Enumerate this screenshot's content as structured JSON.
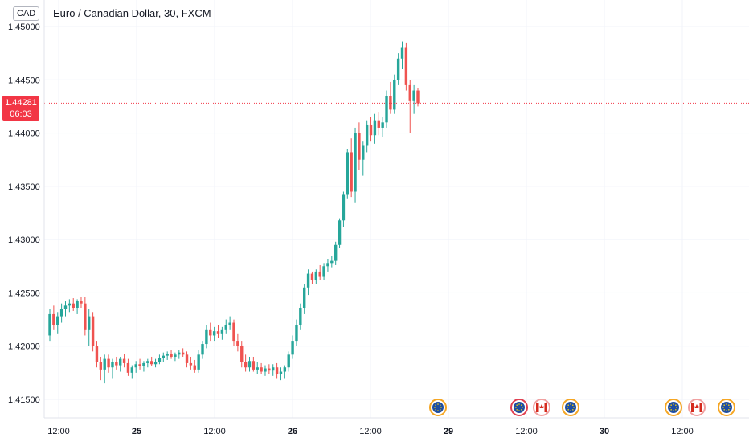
{
  "header": {
    "currency_badge": "CAD",
    "title": "Euro / Canadian Dollar, 30, FXCM"
  },
  "price_tag": {
    "price": "1.44281",
    "countdown": "06:03",
    "color": "#f23645"
  },
  "colors": {
    "up": "#26a69a",
    "down": "#ef5350",
    "grid": "#f0f3fa",
    "last_price_line": "#f23645"
  },
  "chart_data": {
    "type": "candlestick",
    "symbol": "EUR/CAD",
    "timeframe": "30",
    "source": "FXCM",
    "ylim": [
      1.4125,
      1.4515
    ],
    "y_ticks": [
      "1.45000",
      "1.44500",
      "1.44000",
      "1.43500",
      "1.43000",
      "1.42500",
      "1.42000",
      "1.41500"
    ],
    "x_ticks": [
      "12:00",
      "25",
      "12:00",
      "26",
      "12:00",
      "29",
      "12:00",
      "30",
      "12:00"
    ],
    "last_price": 1.44281,
    "grid": true,
    "candles": [
      [
        1.421,
        1.4235,
        1.4205,
        1.423
      ],
      [
        1.423,
        1.4238,
        1.4215,
        1.422
      ],
      [
        1.422,
        1.4232,
        1.4212,
        1.4228
      ],
      [
        1.4228,
        1.424,
        1.4222,
        1.4235
      ],
      [
        1.4235,
        1.4242,
        1.4228,
        1.4238
      ],
      [
        1.4238,
        1.4244,
        1.4232,
        1.424
      ],
      [
        1.424,
        1.4245,
        1.4233,
        1.4236
      ],
      [
        1.4236,
        1.4244,
        1.423,
        1.4242
      ],
      [
        1.4242,
        1.4246,
        1.4236,
        1.424
      ],
      [
        1.424,
        1.4246,
        1.421,
        1.4215
      ],
      [
        1.4215,
        1.4235,
        1.42,
        1.4228
      ],
      [
        1.4228,
        1.4232,
        1.4195,
        1.42
      ],
      [
        1.42,
        1.4205,
        1.418,
        1.4185
      ],
      [
        1.4185,
        1.419,
        1.4168,
        1.4178
      ],
      [
        1.4178,
        1.4192,
        1.4165,
        1.4188
      ],
      [
        1.4188,
        1.4192,
        1.4175,
        1.418
      ],
      [
        1.418,
        1.4188,
        1.417,
        1.4185
      ],
      [
        1.4185,
        1.419,
        1.4178,
        1.4182
      ],
      [
        1.4182,
        1.419,
        1.4176,
        1.4188
      ],
      [
        1.4188,
        1.4193,
        1.418,
        1.4184
      ],
      [
        1.4184,
        1.4188,
        1.4172,
        1.4175
      ],
      [
        1.4175,
        1.4182,
        1.417,
        1.418
      ],
      [
        1.418,
        1.4186,
        1.4175,
        1.4183
      ],
      [
        1.4183,
        1.4188,
        1.4178,
        1.4181
      ],
      [
        1.4181,
        1.4186,
        1.4176,
        1.4184
      ],
      [
        1.4184,
        1.4188,
        1.418,
        1.4186
      ],
      [
        1.4186,
        1.419,
        1.4181,
        1.4183
      ],
      [
        1.4183,
        1.4188,
        1.418,
        1.4185
      ],
      [
        1.4185,
        1.4192,
        1.4183,
        1.4189
      ],
      [
        1.4189,
        1.4194,
        1.4185,
        1.4191
      ],
      [
        1.4191,
        1.4195,
        1.4187,
        1.4193
      ],
      [
        1.4193,
        1.4196,
        1.4188,
        1.419
      ],
      [
        1.419,
        1.4194,
        1.4186,
        1.4192
      ],
      [
        1.4192,
        1.4196,
        1.4188,
        1.4194
      ],
      [
        1.4194,
        1.4198,
        1.419,
        1.4192
      ],
      [
        1.4192,
        1.4195,
        1.418,
        1.4184
      ],
      [
        1.4184,
        1.419,
        1.4178,
        1.4182
      ],
      [
        1.4182,
        1.4187,
        1.4175,
        1.4178
      ],
      [
        1.4178,
        1.4196,
        1.4175,
        1.4192
      ],
      [
        1.4192,
        1.4205,
        1.4188,
        1.4202
      ],
      [
        1.4202,
        1.422,
        1.4198,
        1.4215
      ],
      [
        1.4215,
        1.4222,
        1.4205,
        1.421
      ],
      [
        1.421,
        1.4218,
        1.4205,
        1.4214
      ],
      [
        1.4214,
        1.422,
        1.4208,
        1.4212
      ],
      [
        1.4212,
        1.4218,
        1.4206,
        1.4215
      ],
      [
        1.4215,
        1.4225,
        1.4212,
        1.422
      ],
      [
        1.422,
        1.4228,
        1.4215,
        1.4222
      ],
      [
        1.4222,
        1.4225,
        1.42,
        1.4205
      ],
      [
        1.4205,
        1.4212,
        1.4195,
        1.42
      ],
      [
        1.42,
        1.4205,
        1.418,
        1.4185
      ],
      [
        1.4185,
        1.4192,
        1.4176,
        1.418
      ],
      [
        1.418,
        1.419,
        1.4176,
        1.4186
      ],
      [
        1.4186,
        1.419,
        1.4176,
        1.4178
      ],
      [
        1.4178,
        1.4185,
        1.4174,
        1.418
      ],
      [
        1.418,
        1.4184,
        1.4174,
        1.4176
      ],
      [
        1.4176,
        1.4182,
        1.4172,
        1.4179
      ],
      [
        1.4179,
        1.4183,
        1.4174,
        1.4177
      ],
      [
        1.4177,
        1.4183,
        1.4172,
        1.418
      ],
      [
        1.418,
        1.4184,
        1.417,
        1.4174
      ],
      [
        1.4174,
        1.418,
        1.4168,
        1.4176
      ],
      [
        1.4176,
        1.4182,
        1.417,
        1.418
      ],
      [
        1.418,
        1.4195,
        1.4176,
        1.4192
      ],
      [
        1.4192,
        1.421,
        1.4188,
        1.4205
      ],
      [
        1.4205,
        1.4225,
        1.42,
        1.422
      ],
      [
        1.422,
        1.424,
        1.4215,
        1.4236
      ],
      [
        1.4236,
        1.4258,
        1.423,
        1.4255
      ],
      [
        1.4255,
        1.4272,
        1.4248,
        1.4268
      ],
      [
        1.4268,
        1.427,
        1.4258,
        1.4262
      ],
      [
        1.4262,
        1.4272,
        1.4258,
        1.427
      ],
      [
        1.427,
        1.4276,
        1.4262,
        1.4265
      ],
      [
        1.4265,
        1.4278,
        1.4262,
        1.4275
      ],
      [
        1.4275,
        1.4282,
        1.427,
        1.4278
      ],
      [
        1.4278,
        1.4285,
        1.4274,
        1.428
      ],
      [
        1.428,
        1.4298,
        1.4276,
        1.4295
      ],
      [
        1.4295,
        1.432,
        1.4292,
        1.4318
      ],
      [
        1.4318,
        1.4345,
        1.4312,
        1.4342
      ],
      [
        1.4342,
        1.4385,
        1.4338,
        1.4382
      ],
      [
        1.4382,
        1.4395,
        1.434,
        1.4345
      ],
      [
        1.4345,
        1.4405,
        1.4335,
        1.44
      ],
      [
        1.44,
        1.441,
        1.4365,
        1.4375
      ],
      [
        1.4375,
        1.4392,
        1.436,
        1.4388
      ],
      [
        1.4388,
        1.4412,
        1.4382,
        1.4408
      ],
      [
        1.4408,
        1.4415,
        1.4392,
        1.4398
      ],
      [
        1.4398,
        1.4418,
        1.439,
        1.4412
      ],
      [
        1.4412,
        1.442,
        1.4398,
        1.4405
      ],
      [
        1.4405,
        1.4415,
        1.4396,
        1.441
      ],
      [
        1.441,
        1.444,
        1.4405,
        1.4435
      ],
      [
        1.4435,
        1.4448,
        1.4418,
        1.4422
      ],
      [
        1.4422,
        1.4455,
        1.4418,
        1.445
      ],
      [
        1.445,
        1.4475,
        1.4445,
        1.447
      ],
      [
        1.447,
        1.4486,
        1.446,
        1.448
      ],
      [
        1.448,
        1.4485,
        1.444,
        1.4445
      ],
      [
        1.4445,
        1.445,
        1.44,
        1.443
      ],
      [
        1.443,
        1.4445,
        1.4418,
        1.444
      ],
      [
        1.444,
        1.4442,
        1.4425,
        1.4428
      ]
    ]
  }
}
